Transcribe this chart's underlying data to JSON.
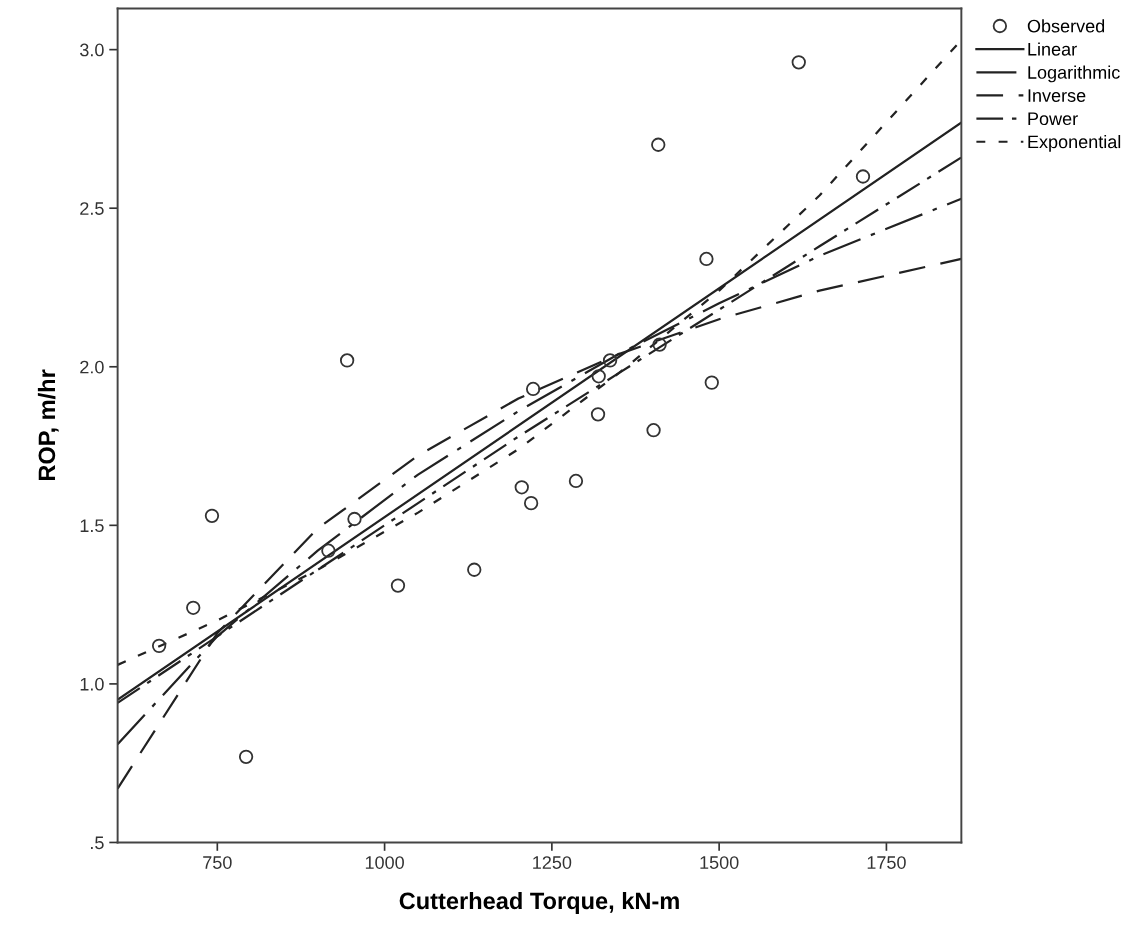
{
  "chart_data": {
    "type": "scatter",
    "xlabel": "Cutterhead Torque, kN-m",
    "ylabel": "ROP, m/hr",
    "xlim": [
      601,
      1862
    ],
    "ylim": [
      0.5,
      3.13
    ],
    "xticks": [
      750,
      1000,
      1250,
      1500,
      1750
    ],
    "yticks": [
      {
        "value": 0.5,
        "label": ".5"
      },
      {
        "value": 1.0,
        "label": "1.0"
      },
      {
        "value": 1.5,
        "label": "1.5"
      },
      {
        "value": 2.0,
        "label": "2.0"
      },
      {
        "value": 2.5,
        "label": "2.5"
      },
      {
        "value": 3.0,
        "label": "3.0"
      }
    ],
    "grid": false,
    "legend": "top right",
    "series": [
      {
        "name": "Observed",
        "marker": "circle",
        "color": "#333333",
        "x": [
          944,
          1222,
          1619,
          1409,
          1715,
          1481,
          1411,
          1337,
          1320,
          1489,
          1319,
          1402,
          742,
          714,
          663,
          793,
          916,
          955,
          1020,
          1134,
          1205,
          1219,
          1286
        ],
        "values": [
          2.02,
          1.93,
          2.96,
          2.7,
          2.6,
          2.34,
          2.07,
          2.02,
          1.97,
          1.95,
          1.85,
          1.8,
          1.53,
          1.24,
          1.12,
          0.77,
          1.42,
          1.52,
          1.31,
          1.36,
          1.62,
          1.57,
          1.64
        ]
      },
      {
        "name": "Linear",
        "type": "line",
        "line_style": "solid",
        "color": "#222222",
        "x": [
          601,
          1862
        ],
        "values": [
          0.95,
          2.77
        ]
      },
      {
        "name": "Logarithmic",
        "type": "line",
        "line_style": "longdashdot",
        "color": "#222222",
        "x": [
          601,
          750,
          900,
          1050,
          1200,
          1350,
          1500,
          1650,
          1862
        ],
        "values": [
          0.81,
          1.15,
          1.42,
          1.66,
          1.86,
          2.04,
          2.2,
          2.35,
          2.53
        ]
      },
      {
        "name": "Inverse",
        "type": "line",
        "line_style": "dashed",
        "color": "#222222",
        "x": [
          601,
          750,
          900,
          1050,
          1200,
          1350,
          1500,
          1650,
          1862
        ],
        "values": [
          0.67,
          1.16,
          1.49,
          1.72,
          1.9,
          2.04,
          2.15,
          2.24,
          2.34
        ]
      },
      {
        "name": "Power",
        "type": "line",
        "line_style": "dashdot",
        "color": "#222222",
        "x": [
          601,
          750,
          900,
          1050,
          1200,
          1350,
          1500,
          1650,
          1862
        ],
        "values": [
          0.94,
          1.15,
          1.36,
          1.57,
          1.78,
          1.98,
          2.18,
          2.38,
          2.66
        ]
      },
      {
        "name": "Exponential",
        "type": "line",
        "line_style": "dotted",
        "color": "#222222",
        "x": [
          601,
          750,
          900,
          1050,
          1200,
          1350,
          1500,
          1650,
          1862
        ],
        "values": [
          1.06,
          1.2,
          1.36,
          1.54,
          1.74,
          1.98,
          2.24,
          2.54,
          3.03
        ]
      }
    ]
  }
}
